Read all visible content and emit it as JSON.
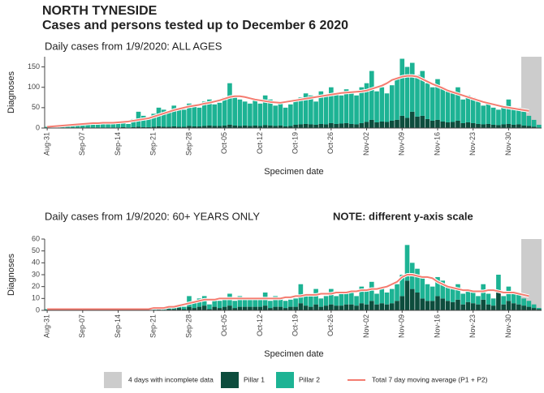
{
  "title": "NORTH TYNESIDE",
  "subtitle": "Cases and persons tested up to December  6 2020",
  "chart_data": [
    {
      "type": "stacked_bar_line",
      "title": "Daily cases from 1/9/2020: ALL AGES",
      "xlabel": "Specimen date",
      "ylabel": "Diagnoses",
      "categories": [
        "Aug-31",
        null,
        null,
        null,
        null,
        null,
        null,
        "Sep-07",
        null,
        null,
        null,
        null,
        null,
        null,
        "Sep-14",
        null,
        null,
        null,
        null,
        null,
        null,
        "Sep-21",
        null,
        null,
        null,
        null,
        null,
        null,
        "Sep-28",
        null,
        null,
        null,
        null,
        null,
        null,
        "Oct-05",
        null,
        null,
        null,
        null,
        null,
        null,
        "Oct-12",
        null,
        null,
        null,
        null,
        null,
        null,
        "Oct-19",
        null,
        null,
        null,
        null,
        null,
        null,
        "Oct-26",
        null,
        null,
        null,
        null,
        null,
        null,
        "Nov-02",
        null,
        null,
        null,
        null,
        null,
        null,
        "Nov-09",
        null,
        null,
        null,
        null,
        null,
        null,
        "Nov-16",
        null,
        null,
        null,
        null,
        null,
        null,
        "Nov-23",
        null,
        null,
        null,
        null,
        null,
        null,
        "Nov-30",
        null,
        null,
        null,
        null,
        null,
        null
      ],
      "ylim": [
        0,
        175
      ],
      "yticks": [
        0,
        50,
        100,
        150
      ],
      "shade": {
        "name": "4 days with incomplete data",
        "days": 4,
        "color": "#cccccc"
      },
      "series": [
        {
          "name": "Pillar 1",
          "kind": "bar",
          "color": "#0d4d3d",
          "values": [
            0,
            1,
            0,
            1,
            0,
            1,
            1,
            1,
            1,
            0,
            1,
            1,
            0,
            1,
            1,
            2,
            1,
            2,
            3,
            2,
            2,
            3,
            4,
            3,
            3,
            4,
            3,
            3,
            5,
            4,
            4,
            5,
            6,
            5,
            5,
            6,
            8,
            6,
            5,
            6,
            5,
            6,
            5,
            7,
            6,
            5,
            6,
            4,
            5,
            8,
            9,
            10,
            9,
            8,
            10,
            9,
            12,
            10,
            11,
            12,
            10,
            9,
            12,
            15,
            20,
            14,
            16,
            15,
            18,
            20,
            30,
            25,
            40,
            28,
            30,
            22,
            18,
            20,
            16,
            14,
            15,
            18,
            12,
            14,
            12,
            10,
            9,
            10,
            8,
            7,
            9,
            10,
            8,
            9,
            6,
            5,
            3,
            1
          ]
        },
        {
          "name": "Pillar 2",
          "kind": "bar",
          "color": "#1db394",
          "values": [
            3,
            4,
            4,
            7,
            6,
            9,
            11,
            9,
            13,
            12,
            14,
            9,
            12,
            15,
            13,
            16,
            9,
            20,
            37,
            28,
            23,
            32,
            46,
            42,
            37,
            51,
            45,
            42,
            55,
            51,
            46,
            60,
            64,
            53,
            57,
            69,
            102,
            74,
            65,
            59,
            55,
            66,
            55,
            73,
            64,
            50,
            54,
            46,
            53,
            62,
            66,
            75,
            71,
            57,
            80,
            69,
            88,
            75,
            69,
            83,
            80,
            71,
            88,
            95,
            120,
            76,
            84,
            70,
            87,
            100,
            140,
            125,
            120,
            102,
            110,
            88,
            82,
            100,
            84,
            76,
            70,
            82,
            58,
            66,
            63,
            55,
            46,
            50,
            42,
            38,
            46,
            60,
            37,
            41,
            34,
            25,
            17,
            7
          ]
        },
        {
          "name": "Total 7 day moving average (P1 + P2)",
          "kind": "line",
          "color": "#f47c70",
          "values": [
            3,
            4,
            5,
            6,
            7,
            8,
            9,
            10,
            11,
            12,
            12,
            13,
            13,
            13,
            14,
            15,
            16,
            18,
            20,
            22,
            24,
            28,
            32,
            36,
            40,
            44,
            47,
            50,
            53,
            55,
            57,
            60,
            62,
            65,
            68,
            72,
            76,
            78,
            78,
            76,
            73,
            70,
            68,
            66,
            64,
            63,
            62,
            64,
            66,
            68,
            70,
            72,
            74,
            76,
            78,
            80,
            82,
            84,
            86,
            87,
            88,
            89,
            90,
            92,
            96,
            100,
            104,
            110,
            118,
            122,
            126,
            128,
            128,
            126,
            120,
            114,
            108,
            103,
            98,
            92,
            88,
            84,
            80,
            76,
            72,
            68,
            64,
            61,
            58,
            55,
            52,
            50,
            48,
            46,
            44,
            42,
            null,
            null
          ]
        }
      ]
    },
    {
      "type": "stacked_bar_line",
      "title": "Daily cases from 1/9/2020: 60+ YEARS ONLY",
      "note": "NOTE: different y-axis scale",
      "xlabel": "Specimen date",
      "ylabel": "Diagnoses",
      "categories": [
        "Aug-31",
        null,
        null,
        null,
        null,
        null,
        null,
        "Sep-07",
        null,
        null,
        null,
        null,
        null,
        null,
        "Sep-14",
        null,
        null,
        null,
        null,
        null,
        null,
        "Sep-21",
        null,
        null,
        null,
        null,
        null,
        null,
        "Sep-28",
        null,
        null,
        null,
        null,
        null,
        null,
        "Oct-05",
        null,
        null,
        null,
        null,
        null,
        null,
        "Oct-12",
        null,
        null,
        null,
        null,
        null,
        null,
        "Oct-19",
        null,
        null,
        null,
        null,
        null,
        null,
        "Oct-26",
        null,
        null,
        null,
        null,
        null,
        null,
        "Nov-02",
        null,
        null,
        null,
        null,
        null,
        null,
        "Nov-09",
        null,
        null,
        null,
        null,
        null,
        null,
        "Nov-16",
        null,
        null,
        null,
        null,
        null,
        null,
        "Nov-23",
        null,
        null,
        null,
        null,
        null,
        null,
        "Nov-30",
        null,
        null,
        null,
        null,
        null,
        null
      ],
      "ylim": [
        0,
        60
      ],
      "yticks": [
        0,
        10,
        20,
        30,
        40,
        50,
        60
      ],
      "shade": {
        "days": 4,
        "color": "#cccccc"
      },
      "series": [
        {
          "kind": "bar",
          "color": "#0d4d3d",
          "values": [
            0,
            0,
            0,
            0,
            0,
            0,
            0,
            0,
            0,
            0,
            0,
            0,
            0,
            0,
            0,
            0,
            0,
            0,
            0,
            0,
            0,
            0,
            1,
            0,
            1,
            1,
            2,
            1,
            3,
            2,
            3,
            4,
            1,
            3,
            2,
            3,
            4,
            2,
            3,
            3,
            3,
            3,
            3,
            4,
            2,
            3,
            3,
            2,
            3,
            3,
            6,
            4,
            3,
            5,
            3,
            4,
            5,
            4,
            4,
            5,
            5,
            4,
            6,
            5,
            8,
            5,
            6,
            5,
            6,
            8,
            12,
            25,
            18,
            15,
            10,
            8,
            8,
            12,
            10,
            8,
            7,
            9,
            5,
            7,
            6,
            5,
            9,
            5,
            4,
            15,
            5,
            8,
            6,
            5,
            4,
            3,
            2,
            1
          ]
        },
        {
          "kind": "bar",
          "color": "#1db394",
          "values": [
            1,
            1,
            0,
            1,
            1,
            0,
            1,
            1,
            0,
            1,
            1,
            0,
            1,
            0,
            1,
            0,
            1,
            1,
            0,
            1,
            1,
            1,
            1,
            1,
            1,
            2,
            3,
            2,
            9,
            6,
            7,
            8,
            4,
            7,
            6,
            7,
            10,
            6,
            9,
            6,
            8,
            7,
            6,
            11,
            6,
            9,
            7,
            6,
            6,
            7,
            16,
            10,
            9,
            13,
            7,
            8,
            13,
            8,
            10,
            11,
            10,
            8,
            14,
            11,
            16,
            9,
            14,
            10,
            12,
            14,
            18,
            30,
            22,
            20,
            18,
            14,
            12,
            16,
            15,
            12,
            11,
            13,
            9,
            11,
            9,
            7,
            13,
            9,
            6,
            15,
            7,
            12,
            10,
            9,
            6,
            5,
            3,
            1
          ]
        },
        {
          "kind": "line",
          "color": "#f47c70",
          "values": [
            1,
            1,
            1,
            1,
            1,
            1,
            1,
            1,
            1,
            1,
            1,
            1,
            1,
            1,
            1,
            1,
            1,
            1,
            1,
            1,
            1,
            2,
            2,
            2,
            3,
            3,
            4,
            5,
            6,
            7,
            8,
            9,
            9,
            9,
            10,
            10,
            10,
            10,
            10,
            10,
            10,
            10,
            10,
            10,
            10,
            10,
            10,
            11,
            11,
            12,
            12,
            13,
            13,
            13,
            14,
            14,
            14,
            15,
            15,
            15,
            16,
            16,
            17,
            17,
            18,
            18,
            19,
            20,
            22,
            24,
            28,
            30,
            30,
            29,
            28,
            28,
            27,
            24,
            22,
            20,
            19,
            18,
            17,
            17,
            16,
            16,
            16,
            17,
            17,
            16,
            15,
            15,
            15,
            14,
            13,
            12,
            null,
            null
          ]
        }
      ]
    }
  ]
}
